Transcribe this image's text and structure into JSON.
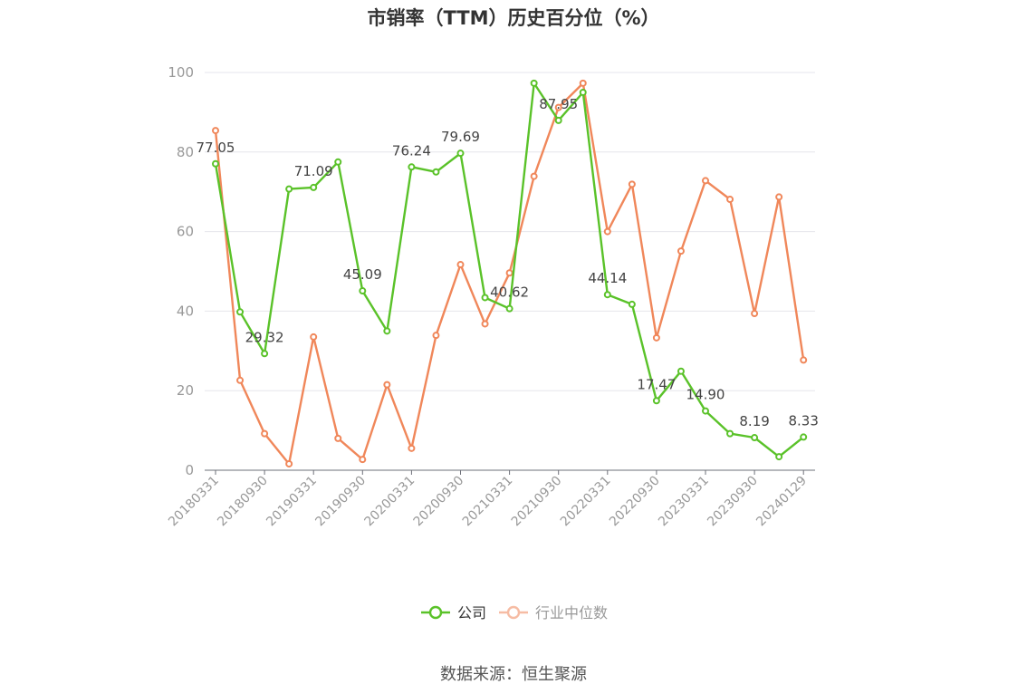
{
  "title": "市销率（TTM）历史百分位（%）",
  "source": "数据来源：恒生聚源",
  "chart_data": {
    "type": "line",
    "title": "市销率（TTM）历史百分位（%）",
    "ylim": [
      0,
      100
    ],
    "yticks": [
      0,
      20,
      40,
      60,
      80,
      100
    ],
    "grid": true,
    "legend_position": "bottom-center",
    "x_tick_labels": [
      "20180331",
      "20180930",
      "20190331",
      "20190930",
      "20200331",
      "20200930",
      "20210331",
      "20210930",
      "20220331",
      "20220930",
      "20230331",
      "20230930",
      "20240129"
    ],
    "x": [
      "20180331",
      "20180630",
      "20180930",
      "20181231",
      "20190331",
      "20190630",
      "20190930",
      "20191231",
      "20200331",
      "20200630",
      "20200930",
      "20201231",
      "20210331",
      "20210630",
      "20210930",
      "20211231",
      "20220331",
      "20220630",
      "20220930",
      "20221231",
      "20230331",
      "20230630",
      "20230930",
      "20231231",
      "20240129"
    ],
    "series": [
      {
        "name": "公司",
        "color": "#5ac229",
        "values": [
          77.05,
          39.8,
          29.32,
          70.7,
          71.09,
          77.5,
          45.09,
          35.0,
          76.24,
          75.0,
          79.69,
          43.4,
          40.62,
          97.3,
          87.95,
          95.0,
          44.14,
          41.7,
          17.47,
          24.9,
          14.9,
          9.2,
          8.19,
          3.4,
          8.33
        ],
        "labels": [
          "77.05",
          null,
          "29.32",
          null,
          "71.09",
          null,
          "45.09",
          null,
          "76.24",
          null,
          "79.69",
          null,
          "40.62",
          null,
          "87.95",
          null,
          "44.14",
          null,
          "17.47",
          null,
          "14.90",
          null,
          "8.19",
          null,
          "8.33"
        ]
      },
      {
        "name": "行业中位数",
        "color": "#f0875a",
        "values": [
          85.4,
          22.6,
          9.2,
          1.6,
          33.5,
          8.0,
          2.7,
          21.5,
          5.5,
          33.9,
          51.7,
          36.8,
          49.6,
          73.9,
          91.2,
          97.3,
          60.0,
          71.9,
          33.3,
          55.1,
          72.8,
          68.1,
          39.4,
          68.7,
          27.7
        ]
      }
    ]
  }
}
